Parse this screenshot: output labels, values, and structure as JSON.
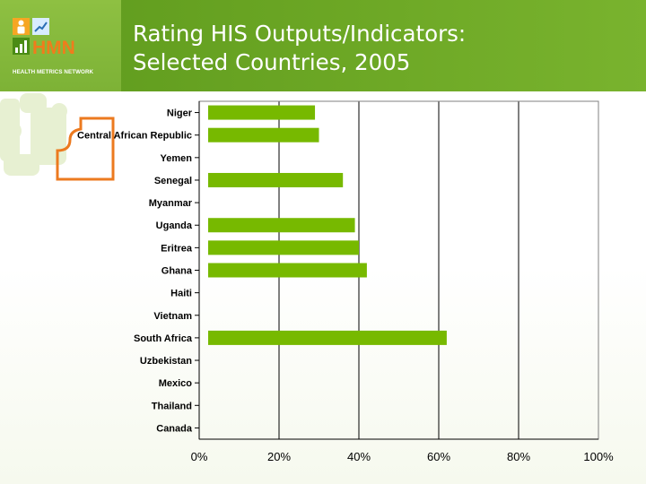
{
  "header": {
    "logo": {
      "mark": "HMN",
      "tagline": "HEALTH METRICS NETWORK"
    },
    "title_line1": "Rating HIS Outputs/Indicators:",
    "title_line2": "Selected Countries, 2005"
  },
  "chart_data": {
    "type": "bar",
    "orientation": "horizontal",
    "title": "",
    "xlabel": "",
    "ylabel": "",
    "categories": [
      "Niger",
      "Central African Republic",
      "Yemen",
      "Senegal",
      "Myanmar",
      "Uganda",
      "Eritrea",
      "Ghana",
      "Haiti",
      "Vietnam",
      "South Africa",
      "Uzbekistan",
      "Mexico",
      "Thailand",
      "Canada"
    ],
    "values": [
      29,
      30,
      null,
      36,
      null,
      39,
      40,
      42,
      null,
      null,
      62,
      null,
      null,
      null,
      null
    ],
    "xlim": [
      0,
      100
    ],
    "xticks": [
      "0%",
      "20%",
      "40%",
      "60%",
      "80%",
      "100%"
    ],
    "grid": "vertical",
    "bar_color": "#77b900",
    "gridline_color": "#000000"
  },
  "colors": {
    "header_green": "#6ba624",
    "logo_green": "#8ec042",
    "accent_orange": "#ec7a1f",
    "bar_green": "#77b900"
  }
}
